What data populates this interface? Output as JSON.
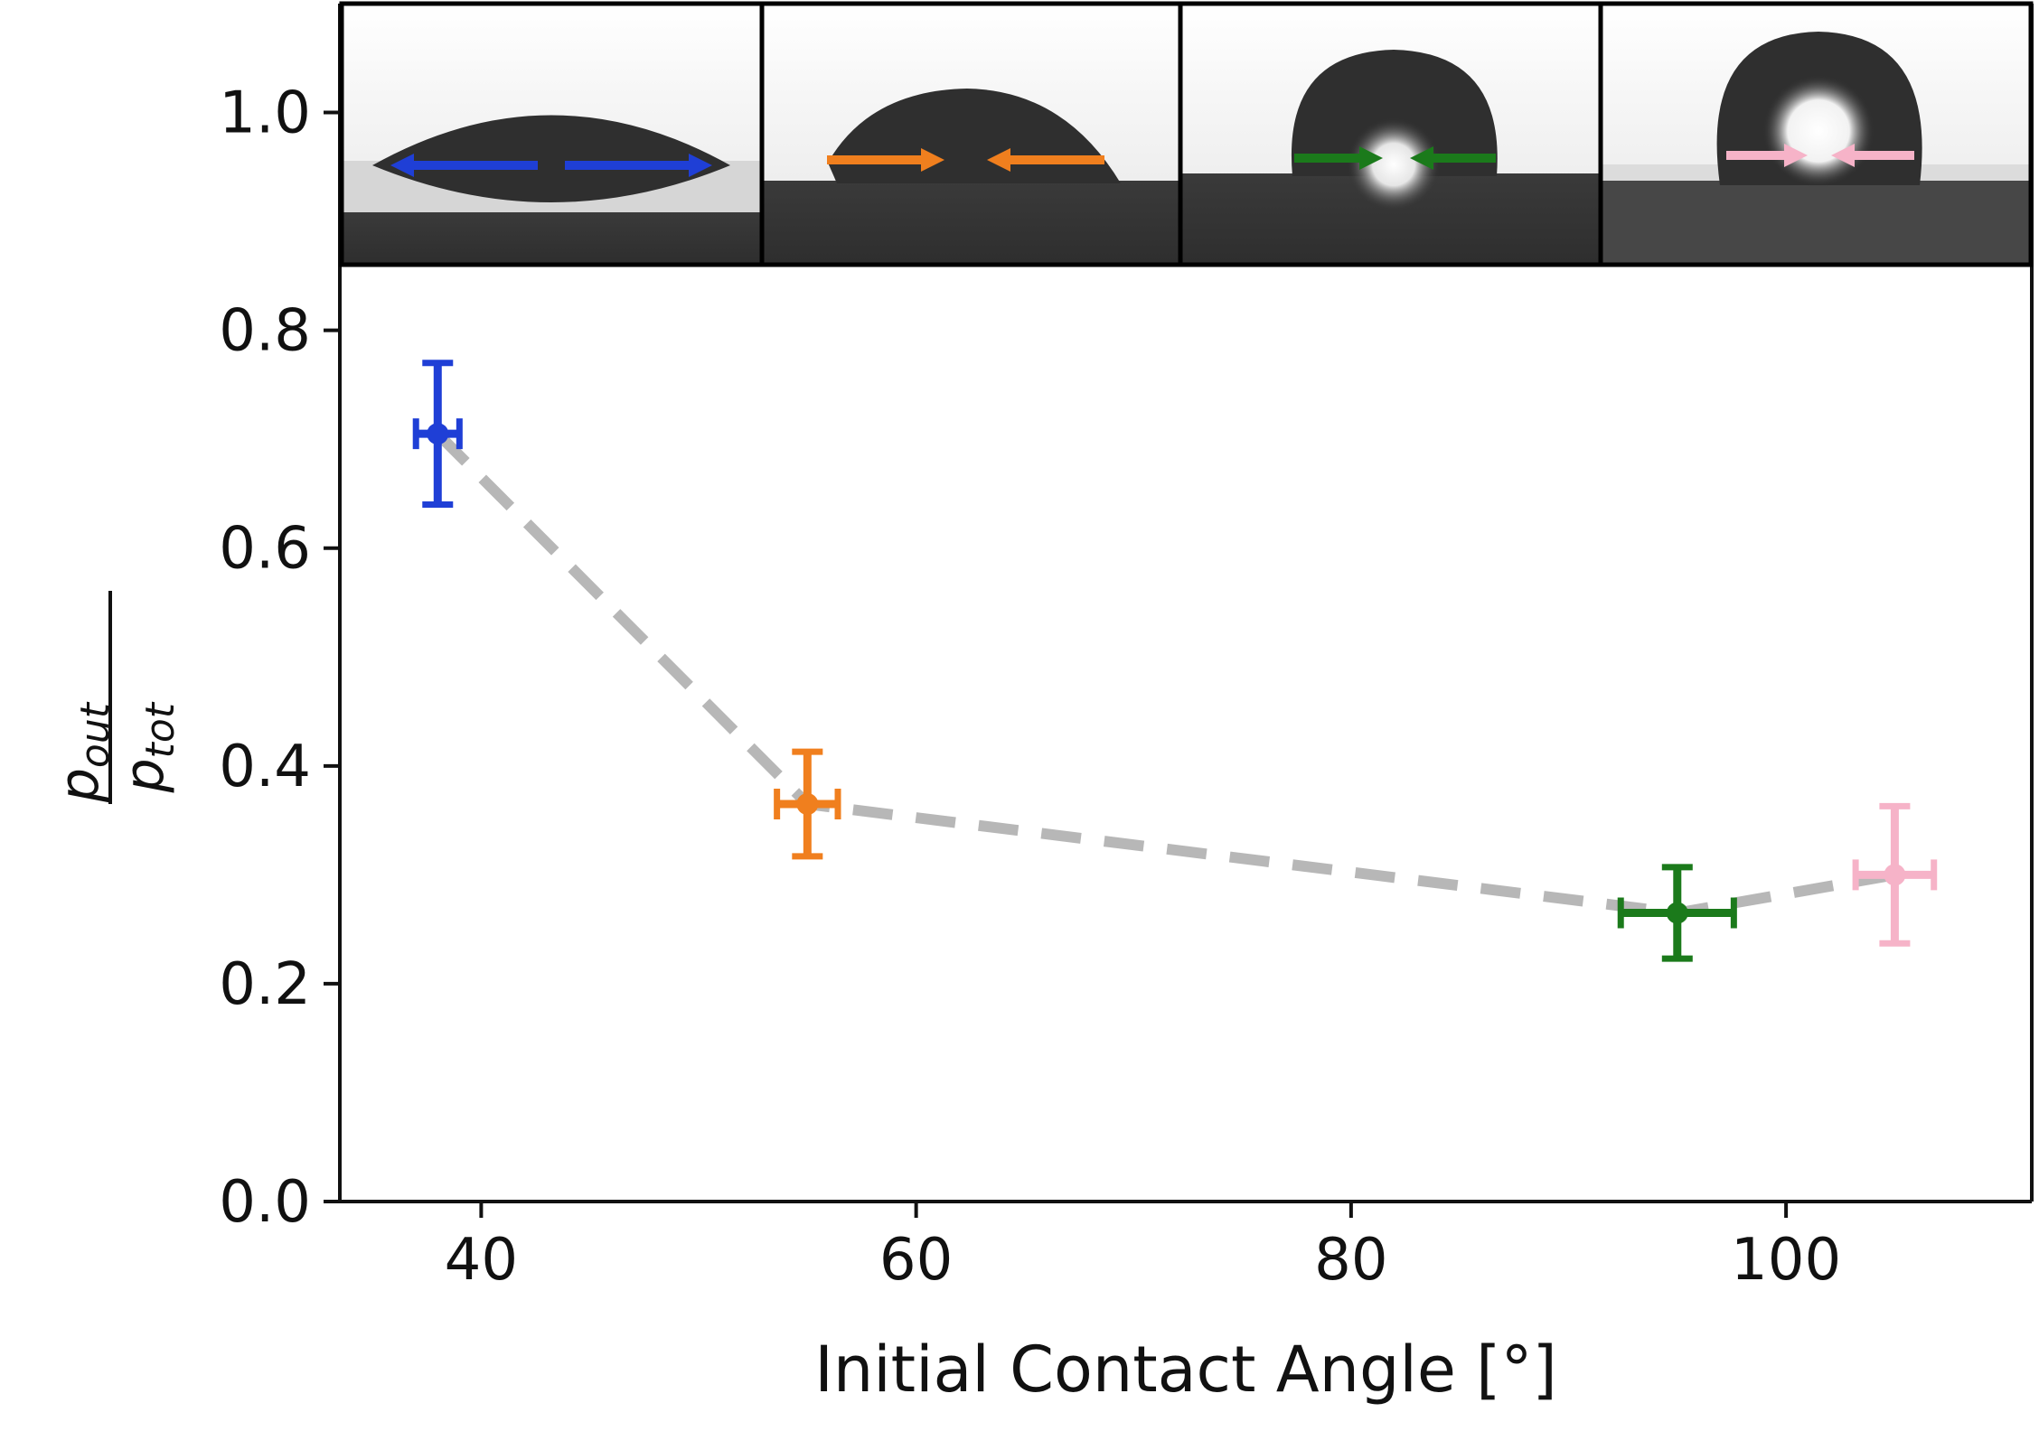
{
  "chart_data": {
    "type": "scatter",
    "title": "",
    "xlabel": "Initial Contact Angle [°]",
    "ylabel": {
      "numerator": "p",
      "numerator_sub": "out",
      "denominator": "p",
      "denominator_sub": "tot"
    },
    "xlim": [
      33.5,
      111.3
    ],
    "ylim": [
      0.0,
      1.1
    ],
    "xticks": [
      40,
      60,
      80,
      100
    ],
    "yticks": [
      0.0,
      0.2,
      0.4,
      0.6,
      0.8,
      1.0
    ],
    "xtick_labels": [
      "40",
      "60",
      "80",
      "100"
    ],
    "ytick_labels": [
      "0.0",
      "0.2",
      "0.4",
      "0.6",
      "0.8",
      "1.0"
    ],
    "grid": false,
    "legend": "none",
    "connector": {
      "style": "dashed",
      "color": "#aaaaaa"
    },
    "points": [
      {
        "x": 38.0,
        "y": 0.705,
        "x_err": 1.0,
        "y_err": 0.065,
        "color": "#1f3fd6"
      },
      {
        "x": 55.0,
        "y": 0.365,
        "x_err": 1.4,
        "y_err": 0.048,
        "color": "#f07f1e"
      },
      {
        "x": 95.0,
        "y": 0.265,
        "x_err": 2.6,
        "y_err": 0.042,
        "color": "#1b7a1b"
      },
      {
        "x": 105.0,
        "y": 0.3,
        "x_err": 1.8,
        "y_err": 0.063,
        "color": "#f6b3c8"
      }
    ],
    "inset_images": [
      {
        "depicts": "wide flat droplet on surface",
        "arrows": "outward",
        "arrow_color": "#1f3fd6"
      },
      {
        "depicts": "medium dome droplet on surface",
        "arrows": "inward",
        "arrow_color": "#f07f1e"
      },
      {
        "depicts": "tall rounded droplet on surface",
        "arrows": "inward",
        "arrow_color": "#1b7a1b"
      },
      {
        "depicts": "nearly spherical droplet on surface",
        "arrows": "inward",
        "arrow_color": "#f6b3c8"
      }
    ]
  }
}
